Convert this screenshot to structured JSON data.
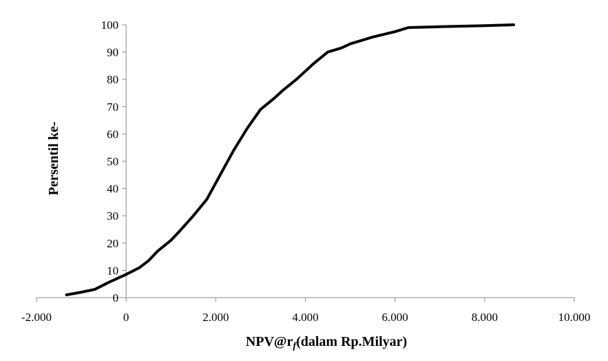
{
  "chart_data": {
    "type": "line",
    "title": "",
    "xlabel": "NPV@r",
    "xlabel_sub": "f",
    "xlabel_suffix": "(dalam Rp.Milyar)",
    "ylabel": "Persentil ke-",
    "xlim": [
      -2000,
      10000
    ],
    "ylim": [
      0,
      100
    ],
    "x_ticks": [
      -2000,
      0,
      2000,
      4000,
      6000,
      8000,
      10000
    ],
    "x_tick_labels": [
      "-2.000",
      "0",
      "2.000",
      "4.000",
      "6.000",
      "8.000",
      "10.000"
    ],
    "y_ticks": [
      0,
      10,
      20,
      30,
      40,
      50,
      60,
      70,
      80,
      90,
      100
    ],
    "y_tick_labels": [
      "0",
      "10",
      "20",
      "30",
      "40",
      "50",
      "60",
      "70",
      "80",
      "90",
      "100"
    ],
    "grid": false,
    "legend": "none",
    "line_color": "#000000",
    "series": [
      {
        "x": [
          -1330,
          -1000,
          -700,
          -580,
          -400,
          -200,
          0,
          300,
          500,
          700,
          1000,
          1200,
          1500,
          1800,
          2000,
          2200,
          2400,
          2700,
          3000,
          3300,
          3500,
          3800,
          4000,
          4200,
          4500,
          4800,
          5000,
          5500,
          6000,
          6300,
          7000,
          8000,
          8650
        ],
        "y": [
          1,
          2,
          3,
          4,
          5.5,
          7,
          8.5,
          11,
          13.5,
          17,
          21,
          24.5,
          30,
          36,
          42,
          48,
          54,
          62,
          69,
          73,
          76,
          80,
          83,
          86,
          90,
          91.5,
          93,
          95.5,
          97.5,
          99,
          99.3,
          99.7,
          100
        ]
      }
    ]
  }
}
